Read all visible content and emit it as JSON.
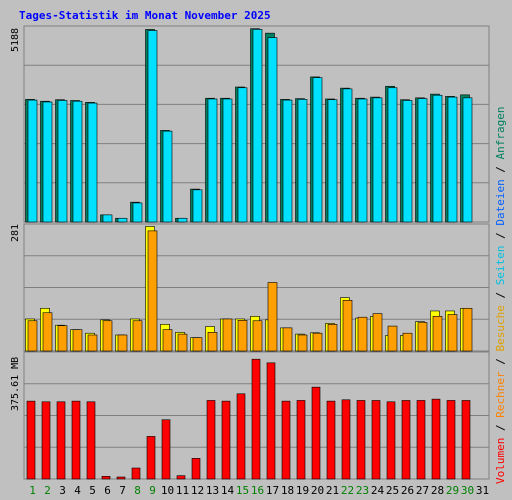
{
  "title": "Tages-Statistik im Monat November 2025",
  "colors": {
    "background": "#c0c0c0",
    "title": "#0000ff",
    "grid": "#808080",
    "hits_front": "#00e0ff",
    "hits_back": "#008060",
    "files_back": "#008080",
    "pages_front": "#ffa000",
    "visits_back": "#ffff00",
    "volume": "#ff0000",
    "weekend": "#008000",
    "weekday": "#000000"
  },
  "legend": {
    "volume": "Volumen",
    "sep1": " / ",
    "rechner": "Rechner",
    "sep2": " / ",
    "besuche": "Besuche",
    "sep3": " / ",
    "seiten": "Seiten",
    "sep4": " / ",
    "dateien": "Dateien",
    "sep5": " / ",
    "anfragen": "Anfragen"
  },
  "chart_data": [
    {
      "type": "bar",
      "panel": "top",
      "ymax_label": "5188",
      "ylim": [
        0,
        5188
      ],
      "categories": [
        "1",
        "2",
        "3",
        "4",
        "5",
        "6",
        "7",
        "8",
        "9",
        "10",
        "11",
        "12",
        "13",
        "14",
        "15",
        "16",
        "17",
        "18",
        "19",
        "20",
        "21",
        "22",
        "23",
        "24",
        "25",
        "26",
        "27",
        "28",
        "29",
        "30",
        "31"
      ],
      "series": [
        {
          "key": "anfragen",
          "values": [
            3280,
            3230,
            3270,
            3250,
            3200,
            190,
            100,
            530,
            5150,
            2450,
            100,
            880,
            3310,
            3310,
            3610,
            5170,
            5050,
            3280,
            3300,
            3880,
            3290,
            3580,
            3310,
            3340,
            3630,
            3270,
            3320,
            3420,
            3360,
            3400,
            null
          ]
        },
        {
          "key": "dateien",
          "values": [
            3260,
            3210,
            3250,
            3230,
            3180,
            190,
            100,
            510,
            5120,
            2430,
            100,
            860,
            3290,
            3290,
            3590,
            5150,
            4930,
            3260,
            3280,
            3860,
            3270,
            3560,
            3290,
            3320,
            3590,
            3250,
            3300,
            3390,
            3340,
            3320,
            null
          ]
        }
      ]
    },
    {
      "type": "bar",
      "panel": "middle",
      "ymax_label": "281",
      "ylim": [
        0,
        281
      ],
      "categories": [
        "1",
        "2",
        "3",
        "4",
        "5",
        "6",
        "7",
        "8",
        "9",
        "10",
        "11",
        "12",
        "13",
        "14",
        "15",
        "16",
        "17",
        "18",
        "19",
        "20",
        "21",
        "22",
        "23",
        "24",
        "25",
        "26",
        "27",
        "28",
        "29",
        "30",
        "31"
      ],
      "series": [
        {
          "key": "besuche",
          "values": [
            72,
            96,
            58,
            48,
            40,
            70,
            36,
            72,
            280,
            60,
            42,
            30,
            55,
            72,
            72,
            78,
            70,
            52,
            38,
            41,
            62,
            120,
            74,
            78,
            35,
            35,
            66,
            90,
            90,
            96,
            null
          ]
        },
        {
          "key": "seiten",
          "values": [
            68,
            86,
            57,
            48,
            36,
            68,
            36,
            68,
            270,
            48,
            38,
            30,
            42,
            72,
            69,
            68,
            154,
            52,
            36,
            40,
            60,
            114,
            76,
            84,
            56,
            40,
            64,
            78,
            82,
            96,
            null
          ]
        }
      ]
    },
    {
      "type": "bar",
      "panel": "bottom",
      "ymax_label": "375.61 MB",
      "ylim": [
        0,
        375.61
      ],
      "categories": [
        "1",
        "2",
        "3",
        "4",
        "5",
        "6",
        "7",
        "8",
        "9",
        "10",
        "11",
        "12",
        "13",
        "14",
        "15",
        "16",
        "17",
        "18",
        "19",
        "20",
        "21",
        "22",
        "23",
        "24",
        "25",
        "26",
        "27",
        "28",
        "29",
        "30",
        "31"
      ],
      "series": [
        {
          "key": "volumen",
          "values": [
            234,
            232,
            232,
            234,
            232,
            8,
            6,
            33,
            128,
            178,
            10,
            62,
            236,
            234,
            256,
            360,
            349,
            234,
            236,
            276,
            234,
            238,
            236,
            236,
            232,
            236,
            236,
            240,
            236,
            236,
            null
          ]
        }
      ]
    }
  ],
  "x_axis": {
    "labels": [
      "1",
      "2",
      "3",
      "4",
      "5",
      "6",
      "7",
      "8",
      "9",
      "10",
      "11",
      "12",
      "13",
      "14",
      "15",
      "16",
      "17",
      "18",
      "19",
      "20",
      "21",
      "22",
      "23",
      "24",
      "25",
      "26",
      "27",
      "28",
      "29",
      "30",
      "31"
    ],
    "weekend_days": [
      1,
      2,
      8,
      9,
      15,
      16,
      22,
      23,
      29,
      30
    ]
  }
}
